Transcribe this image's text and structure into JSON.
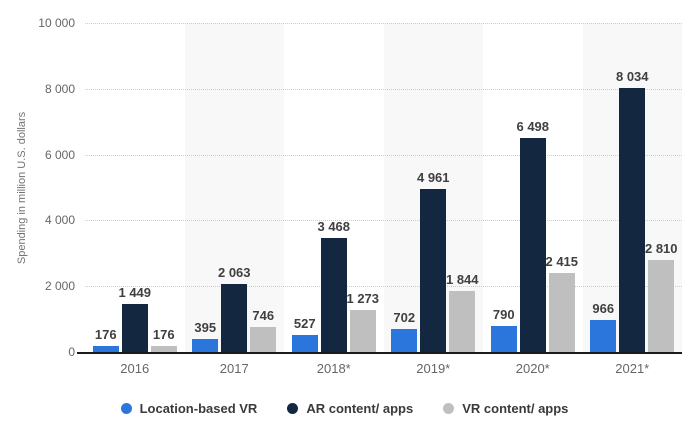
{
  "chart_data": {
    "type": "bar",
    "title": "",
    "xlabel": "",
    "ylabel": "Spending in million U.S. dollars",
    "ylim": [
      0,
      10000
    ],
    "y_tick_step": 2000,
    "grid": true,
    "legend_position": "bottom",
    "number_format": "space-thousands",
    "categories": [
      "2016",
      "2017",
      "2018*",
      "2019*",
      "2020*",
      "2021*"
    ],
    "series": [
      {
        "name": "Location-based VR",
        "color": "#2A76DD",
        "values": [
          176,
          395,
          527,
          702,
          790,
          966
        ]
      },
      {
        "name": "AR content/ apps",
        "color": "#142740",
        "values": [
          1449,
          2063,
          3468,
          4961,
          6498,
          8034
        ]
      },
      {
        "name": "VR content/ apps",
        "color": "#BFBFBF",
        "values": [
          176,
          746,
          1273,
          1844,
          2415,
          2810
        ]
      }
    ],
    "plot_band_color": "#F8F8F8",
    "plot_band_indices": [
      1,
      3,
      5
    ],
    "gridline_color": "#CCCCCC",
    "baseline_color": "#1A1A1A",
    "value_label_color": "#404040",
    "axis_text_color": "#666666"
  }
}
